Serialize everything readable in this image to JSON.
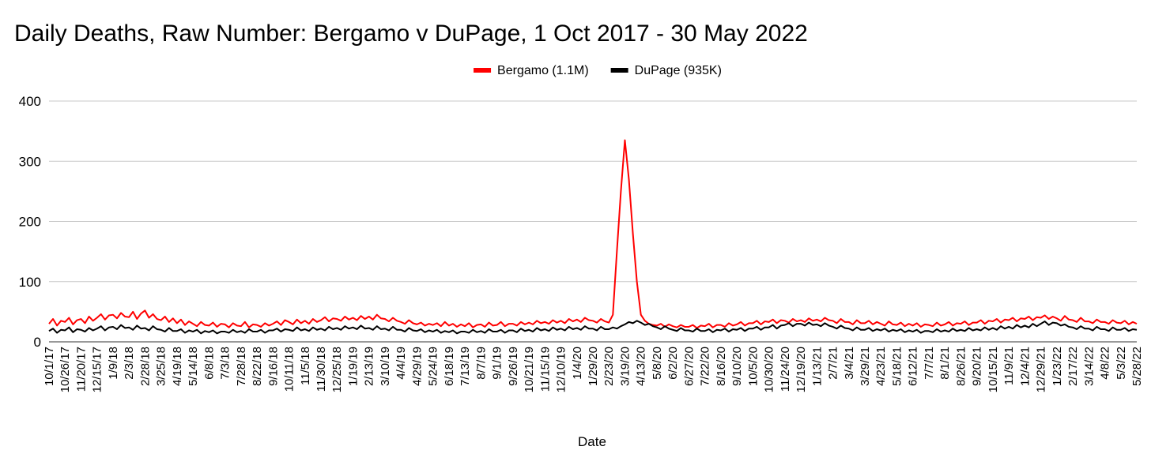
{
  "chart_data": {
    "type": "line",
    "title": "Daily Deaths, Raw Number: Bergamo v DuPage, 1 Oct 2017 - 30 May 2022",
    "x_label": "Date",
    "legend": "top",
    "grid": true,
    "ylim": [
      0,
      400
    ],
    "yticks": [
      0,
      100,
      200,
      300,
      400
    ],
    "categories": [
      "10/1/17",
      null,
      null,
      null,
      "10/26/17",
      null,
      null,
      null,
      "11/20/17",
      null,
      null,
      null,
      "12/15/17",
      null,
      null,
      null,
      "1/9/18",
      null,
      null,
      null,
      "2/3/18",
      null,
      null,
      null,
      "2/28/18",
      null,
      null,
      null,
      "3/25/18",
      null,
      null,
      null,
      "4/19/18",
      null,
      null,
      null,
      "5/14/18",
      null,
      null,
      null,
      "6/8/18",
      null,
      null,
      null,
      "7/3/18",
      null,
      null,
      null,
      "7/28/18",
      null,
      null,
      null,
      "8/22/18",
      null,
      null,
      null,
      "9/16/18",
      null,
      null,
      null,
      "10/11/18",
      null,
      null,
      null,
      "11/5/18",
      null,
      null,
      null,
      "11/30/18",
      null,
      null,
      null,
      "12/25/18",
      null,
      null,
      null,
      "1/19/19",
      null,
      null,
      null,
      "2/13/19",
      null,
      null,
      null,
      "3/10/19",
      null,
      null,
      null,
      "4/4/19",
      null,
      null,
      null,
      "4/29/19",
      null,
      null,
      null,
      "5/24/19",
      null,
      null,
      null,
      "6/18/19",
      null,
      null,
      null,
      "7/13/19",
      null,
      null,
      null,
      "8/7/19",
      null,
      null,
      null,
      "9/1/19",
      null,
      null,
      null,
      "9/26/19",
      null,
      null,
      null,
      "10/21/19",
      null,
      null,
      null,
      "11/15/19",
      null,
      null,
      null,
      "12/10/19",
      null,
      null,
      null,
      "1/4/20",
      null,
      null,
      null,
      "1/29/20",
      null,
      null,
      null,
      "2/23/20",
      null,
      null,
      null,
      "3/19/20",
      null,
      null,
      null,
      "4/13/20",
      null,
      null,
      null,
      "5/8/20",
      null,
      null,
      null,
      "6/2/20",
      null,
      null,
      null,
      "6/27/20",
      null,
      null,
      null,
      "7/22/20",
      null,
      null,
      null,
      "8/16/20",
      null,
      null,
      null,
      "9/10/20",
      null,
      null,
      null,
      "10/5/20",
      null,
      null,
      null,
      "10/30/20",
      null,
      null,
      null,
      "11/24/20",
      null,
      null,
      null,
      "12/19/20",
      null,
      null,
      null,
      "1/13/21",
      null,
      null,
      null,
      "2/7/21",
      null,
      null,
      null,
      "3/4/21",
      null,
      null,
      null,
      "3/29/21",
      null,
      null,
      null,
      "4/23/21",
      null,
      null,
      null,
      "5/18/21",
      null,
      null,
      null,
      "6/12/21",
      null,
      null,
      null,
      "7/7/21",
      null,
      null,
      null,
      "8/1/21",
      null,
      null,
      null,
      "8/26/21",
      null,
      null,
      null,
      "9/20/21",
      null,
      null,
      null,
      "10/15/21",
      null,
      null,
      null,
      "11/9/21",
      null,
      null,
      null,
      "12/4/21",
      null,
      null,
      null,
      "12/29/21",
      null,
      null,
      null,
      "1/23/22",
      null,
      null,
      null,
      "2/17/22",
      null,
      null,
      null,
      "3/14/22",
      null,
      null,
      null,
      "4/8/22",
      null,
      null,
      null,
      "5/3/22",
      null,
      null,
      null,
      "5/28/22"
    ],
    "series": [
      {
        "name": "Bergamo (1.1M)",
        "color": "#ff0000",
        "values": [
          30,
          38,
          27,
          35,
          33,
          40,
          29,
          36,
          38,
          31,
          42,
          35,
          40,
          46,
          37,
          44,
          45,
          39,
          48,
          42,
          41,
          50,
          38,
          47,
          52,
          40,
          46,
          38,
          36,
          42,
          33,
          39,
          31,
          37,
          28,
          34,
          30,
          26,
          33,
          28,
          27,
          32,
          25,
          30,
          29,
          24,
          31,
          27,
          26,
          33,
          24,
          29,
          28,
          25,
          31,
          27,
          30,
          34,
          28,
          36,
          33,
          29,
          37,
          31,
          35,
          30,
          38,
          33,
          36,
          41,
          34,
          39,
          38,
          35,
          42,
          37,
          40,
          36,
          43,
          38,
          42,
          37,
          45,
          39,
          38,
          34,
          40,
          35,
          33,
          30,
          36,
          31,
          29,
          32,
          27,
          30,
          28,
          31,
          26,
          33,
          27,
          30,
          25,
          29,
          26,
          31,
          24,
          28,
          29,
          25,
          32,
          27,
          28,
          33,
          26,
          30,
          30,
          27,
          33,
          29,
          32,
          29,
          35,
          31,
          33,
          30,
          36,
          32,
          35,
          31,
          38,
          34,
          37,
          33,
          40,
          36,
          35,
          32,
          38,
          34,
          32,
          45,
          150,
          250,
          335,
          270,
          180,
          100,
          45,
          35,
          30,
          28,
          27,
          30,
          25,
          29,
          26,
          24,
          28,
          25,
          25,
          28,
          23,
          27,
          26,
          30,
          24,
          28,
          28,
          25,
          31,
          27,
          29,
          33,
          27,
          31,
          31,
          35,
          29,
          34,
          33,
          37,
          31,
          36,
          35,
          32,
          38,
          34,
          36,
          33,
          39,
          35,
          37,
          34,
          40,
          36,
          35,
          31,
          38,
          33,
          33,
          29,
          36,
          31,
          31,
          35,
          29,
          33,
          30,
          27,
          34,
          29,
          28,
          32,
          26,
          30,
          27,
          31,
          25,
          29,
          28,
          26,
          32,
          27,
          29,
          33,
          27,
          31,
          30,
          34,
          28,
          32,
          32,
          36,
          30,
          35,
          34,
          38,
          32,
          37,
          36,
          40,
          34,
          39,
          38,
          42,
          36,
          41,
          40,
          44,
          38,
          42,
          39,
          35,
          43,
          37,
          36,
          33,
          40,
          34,
          34,
          31,
          37,
          33,
          33,
          30,
          36,
          32,
          31,
          35,
          29,
          33,
          30
        ]
      },
      {
        "name": "DuPage (935K)",
        "color": "#000000",
        "values": [
          18,
          22,
          15,
          20,
          19,
          24,
          16,
          21,
          20,
          17,
          23,
          19,
          22,
          26,
          19,
          24,
          25,
          21,
          28,
          23,
          24,
          20,
          27,
          22,
          23,
          19,
          26,
          21,
          20,
          17,
          23,
          18,
          18,
          21,
          15,
          19,
          17,
          20,
          14,
          18,
          16,
          19,
          14,
          17,
          17,
          15,
          20,
          16,
          18,
          15,
          21,
          17,
          17,
          20,
          15,
          19,
          19,
          22,
          17,
          21,
          20,
          18,
          24,
          19,
          21,
          18,
          24,
          20,
          22,
          19,
          25,
          21,
          23,
          20,
          26,
          22,
          24,
          21,
          27,
          22,
          23,
          20,
          26,
          21,
          22,
          19,
          25,
          20,
          20,
          17,
          23,
          19,
          18,
          21,
          16,
          19,
          17,
          20,
          15,
          18,
          16,
          19,
          14,
          17,
          17,
          15,
          20,
          16,
          18,
          15,
          21,
          17,
          17,
          20,
          15,
          19,
          19,
          16,
          22,
          18,
          20,
          17,
          23,
          19,
          21,
          18,
          24,
          20,
          22,
          19,
          25,
          21,
          23,
          20,
          26,
          22,
          22,
          19,
          25,
          21,
          21,
          24,
          22,
          26,
          29,
          33,
          31,
          35,
          32,
          28,
          30,
          26,
          24,
          21,
          26,
          22,
          20,
          18,
          23,
          19,
          19,
          17,
          22,
          18,
          18,
          21,
          16,
          20,
          19,
          22,
          17,
          21,
          20,
          23,
          18,
          22,
          22,
          25,
          20,
          24,
          24,
          28,
          22,
          27,
          28,
          31,
          26,
          30,
          30,
          27,
          32,
          28,
          29,
          26,
          31,
          27,
          25,
          22,
          27,
          23,
          22,
          19,
          24,
          20,
          20,
          23,
          18,
          21,
          19,
          22,
          17,
          20,
          18,
          21,
          16,
          19,
          17,
          20,
          15,
          18,
          18,
          16,
          21,
          17,
          19,
          17,
          22,
          18,
          20,
          18,
          23,
          19,
          21,
          19,
          24,
          20,
          23,
          20,
          26,
          22,
          25,
          22,
          28,
          24,
          27,
          24,
          30,
          26,
          30,
          34,
          28,
          32,
          31,
          27,
          29,
          25,
          24,
          21,
          26,
          22,
          22,
          19,
          25,
          21,
          21,
          18,
          24,
          20,
          20,
          23,
          18,
          21,
          20
        ]
      }
    ]
  }
}
